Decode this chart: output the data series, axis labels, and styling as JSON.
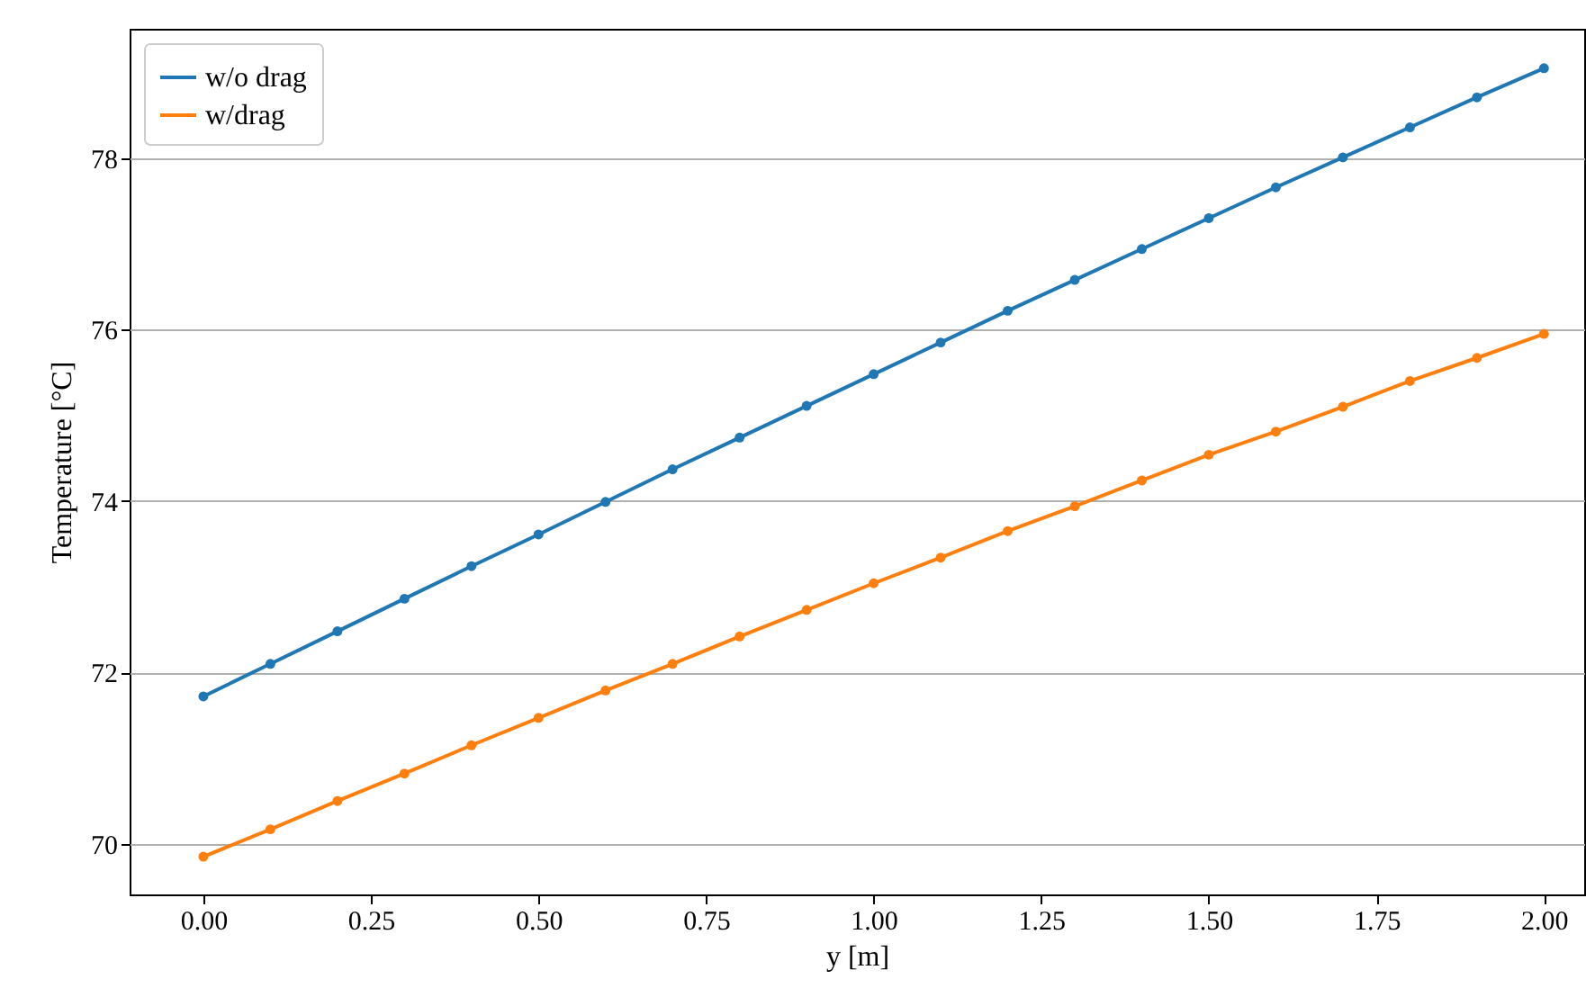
{
  "chart_data": {
    "type": "line",
    "xlabel": "y [m]",
    "ylabel": "Temperature [°C]",
    "x": [
      0,
      0.1,
      0.2,
      0.3,
      0.4,
      0.5,
      0.6,
      0.7,
      0.8,
      0.9,
      1.0,
      1.1,
      1.2,
      1.3,
      1.4,
      1.5,
      1.6,
      1.7,
      1.8,
      1.9,
      2.0
    ],
    "series": [
      {
        "name": "w/o drag",
        "color": "#1f77b4",
        "values": [
          71.72,
          72.1,
          72.48,
          72.86,
          73.24,
          73.61,
          73.99,
          74.37,
          74.74,
          75.11,
          75.48,
          75.85,
          76.22,
          76.58,
          76.94,
          77.3,
          77.66,
          78.01,
          78.36,
          78.71,
          79.05
        ]
      },
      {
        "name": "w/drag",
        "color": "#ff7f0e",
        "values": [
          69.85,
          70.17,
          70.5,
          70.82,
          71.15,
          71.47,
          71.79,
          72.1,
          72.42,
          72.73,
          73.04,
          73.34,
          73.65,
          73.94,
          74.24,
          74.54,
          74.81,
          75.1,
          75.4,
          75.67,
          75.95
        ]
      }
    ],
    "xlim": [
      -0.11,
      2.06
    ],
    "xticks": [
      {
        "value": 0,
        "label": "0.00"
      },
      {
        "value": 0.25,
        "label": "0.25"
      },
      {
        "value": 0.5,
        "label": "0.50"
      },
      {
        "value": 0.75,
        "label": "0.75"
      },
      {
        "value": 1,
        "label": "1.00"
      },
      {
        "value": 1.25,
        "label": "1.25"
      },
      {
        "value": 1.5,
        "label": "1.50"
      },
      {
        "value": 1.75,
        "label": "1.75"
      },
      {
        "value": 2,
        "label": "2.00"
      }
    ],
    "ylim": [
      69.41,
      79.51
    ],
    "yticks": [
      70,
      72,
      74,
      76,
      78
    ],
    "grid": "y",
    "legend": "top left",
    "marker": "circle",
    "line_style": "solid"
  }
}
